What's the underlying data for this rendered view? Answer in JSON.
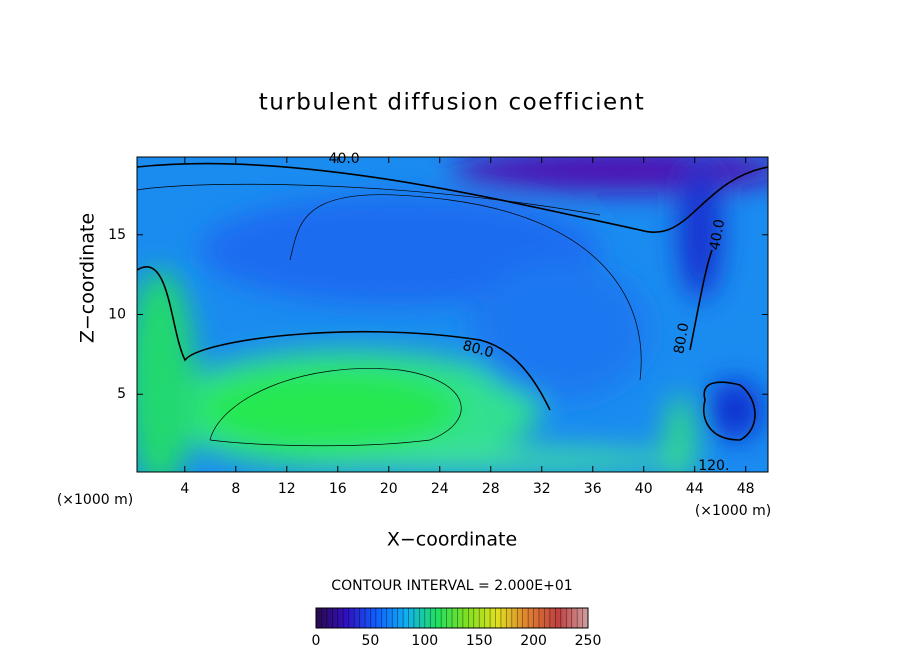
{
  "chart_data": {
    "type": "contour",
    "title": "turbulent diffusion coefficient",
    "x_label": "X−coordinate",
    "y_label": "Z−coordinate",
    "x_unit_labels": [
      "(×1000 m)",
      "(×1000 m)"
    ],
    "xlim": [
      0.25,
      49.75
    ],
    "ylim": [
      0.125,
      19.875
    ],
    "xticks": [
      4,
      8,
      12,
      16,
      20,
      24,
      28,
      32,
      36,
      40,
      44,
      48
    ],
    "yticks": [
      5,
      10,
      15
    ],
    "contour_labels": [
      {
        "label": "40.0",
        "x": 16.5,
        "y": 19.75
      },
      {
        "label": "40.0",
        "x": 45.8,
        "y": 15
      },
      {
        "label": "80.0",
        "x": 27,
        "y": 7.8
      },
      {
        "label": "80.0",
        "x": 43,
        "y": 8.5
      },
      {
        "label": "120.",
        "x": 45.5,
        "y": 0.5
      }
    ],
    "contour_interval_label": "CONTOUR INTERVAL = 2.000E+01",
    "colorbar": {
      "lim": [
        0,
        250
      ],
      "ticks": [
        0,
        50,
        100,
        150,
        200,
        250
      ],
      "colors": [
        "#2a0a4a",
        "#3010c0",
        "#1060ff",
        "#10b0f0",
        "#20e060",
        "#80e020",
        "#e0e020",
        "#e08030",
        "#c04040",
        "#d0a0a0"
      ]
    }
  }
}
